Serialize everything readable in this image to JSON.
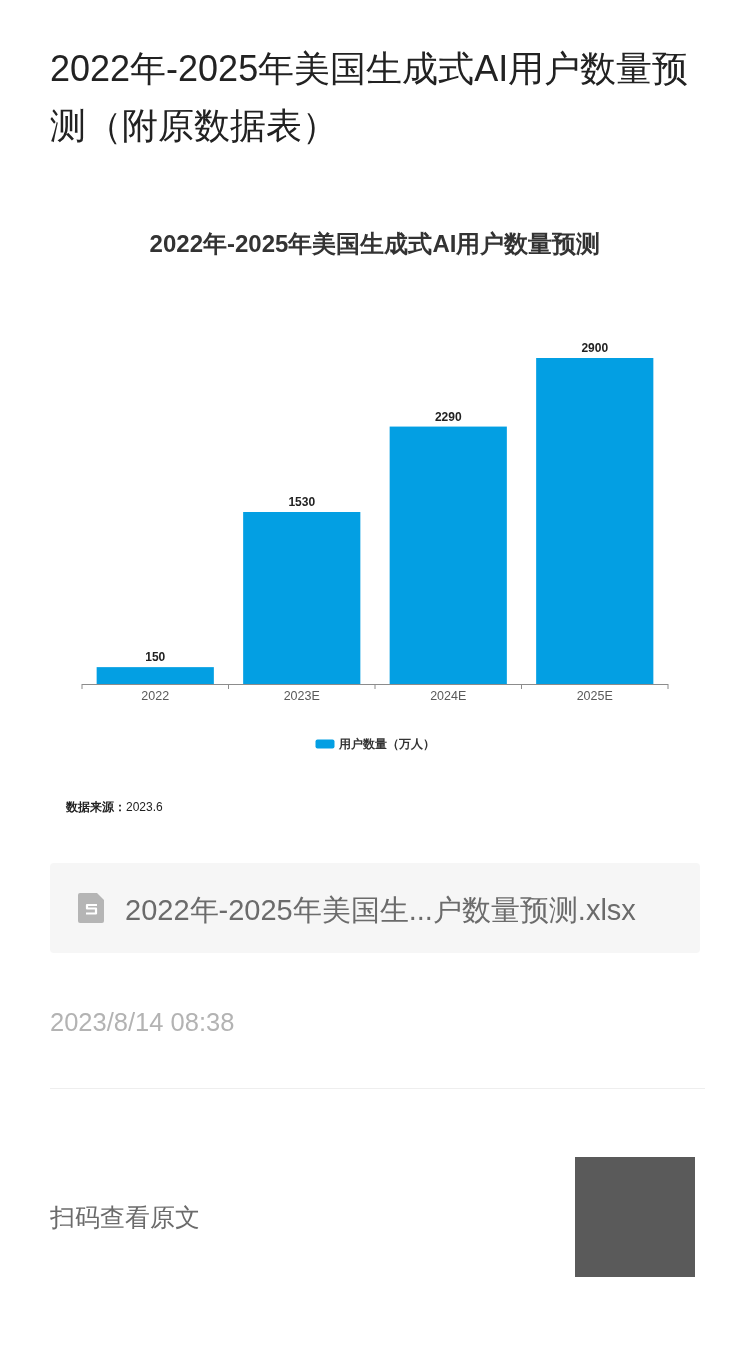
{
  "chart_data": {
    "type": "bar",
    "title": "2022年-2025年美国生成式AI用户数量预测",
    "categories": [
      "2022",
      "2023E",
      "2024E",
      "2025E"
    ],
    "series": [
      {
        "name": "用户数量（万人）",
        "color": "#039fe3",
        "values": [
          150,
          1530,
          2290,
          2900
        ]
      }
    ],
    "data_labels": true,
    "legend": "bottom",
    "annotations": [
      "2022年-2025年美国生成式AI用户数量预测（附原数据表）",
      "**数据来源：**2023.6",
      "2022年-2025年美国生...户数量预测.xlsx",
      "2023/8/14 08:38",
      "扫码查看原文"
    ]
  }
}
